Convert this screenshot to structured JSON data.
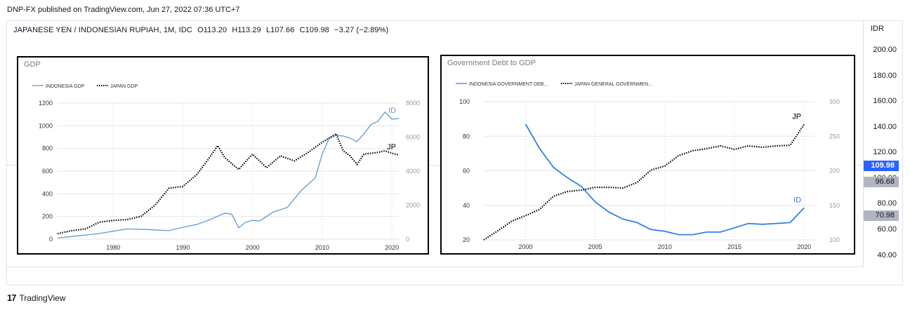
{
  "caption": "DNP-FX published on TradingView.com, Jun 27, 2022 07:36 UTC+7",
  "symbol": {
    "name": "JAPANESE YEN / INDONESIAN RUPIAH, 1M, IDC",
    "open": "O113.20",
    "high": "H113.29",
    "low": "L107.66",
    "close": "C109.98",
    "change": "−3.27 (−2.89%)"
  },
  "price_axis": {
    "unit": "IDR",
    "ticks": [
      "200.00",
      "180.00",
      "160.00",
      "140.00",
      "120.00",
      "100.00",
      "80.00",
      "60.00",
      "40.00"
    ],
    "last_price": "109.98",
    "marker_a": "96.68",
    "marker_b": "70.98",
    "colors": {
      "price": "#2962ff",
      "marker": "#b2b5be"
    }
  },
  "brand": {
    "logo": "17",
    "name": "TradingView"
  },
  "chart_data": [
    {
      "type": "line",
      "title": "GDP",
      "legend": [
        "INDONESIA GDP",
        "JAPAN GDP"
      ],
      "x_ticks": [
        "1980",
        "1990",
        "2000",
        "2010",
        "2020"
      ],
      "xlim": [
        1972,
        2021
      ],
      "left_axis": {
        "ticks": [
          "1200",
          "1000",
          "800",
          "600",
          "400",
          "200",
          "0"
        ],
        "ylim": [
          0,
          1200
        ]
      },
      "right_axis": {
        "ticks": [
          "8000",
          "6000",
          "4000",
          "2000",
          "0"
        ],
        "ylim": [
          0,
          8000
        ]
      },
      "series": [
        {
          "name": "INDONESIA GDP",
          "label": "ID",
          "axis": "left",
          "style": "solid",
          "color": "#5b9bd5",
          "x": [
            1972,
            1975,
            1978,
            1980,
            1982,
            1985,
            1988,
            1990,
            1992,
            1994,
            1996,
            1997,
            1998,
            1999,
            2000,
            2001,
            2003,
            2005,
            2007,
            2009,
            2010,
            2011,
            2012,
            2013,
            2014,
            2015,
            2016,
            2017,
            2018,
            2019,
            2020,
            2021
          ],
          "values": [
            10,
            30,
            50,
            70,
            90,
            85,
            75,
            105,
            130,
            175,
            230,
            220,
            100,
            150,
            165,
            160,
            240,
            280,
            430,
            540,
            750,
            890,
            915,
            910,
            890,
            860,
            930,
            1010,
            1040,
            1120,
            1058,
            1065
          ]
        },
        {
          "name": "JAPAN GDP",
          "label": "JP",
          "axis": "right",
          "style": "dotted",
          "color": "#000000",
          "x": [
            1972,
            1974,
            1976,
            1978,
            1980,
            1982,
            1984,
            1986,
            1988,
            1990,
            1992,
            1994,
            1995,
            1996,
            1998,
            2000,
            2002,
            2004,
            2006,
            2008,
            2010,
            2012,
            2013,
            2014,
            2015,
            2016,
            2018,
            2019,
            2020,
            2021
          ],
          "values": [
            320,
            500,
            600,
            1000,
            1100,
            1150,
            1350,
            2000,
            3000,
            3100,
            3800,
            4900,
            5500,
            4800,
            4100,
            5000,
            4200,
            4900,
            4600,
            5100,
            5700,
            6200,
            5200,
            4900,
            4400,
            5000,
            5100,
            5200,
            5050,
            4950
          ]
        }
      ]
    },
    {
      "type": "line",
      "title": "Government Debt to GDP",
      "legend": [
        "INDONESIA GOVERNMENT DEB...",
        "JAPAN GENERAL GOVERNMEN..."
      ],
      "x_ticks": [
        "2000",
        "2005",
        "2010",
        "2015",
        "2020"
      ],
      "xlim": [
        1997,
        2020.8
      ],
      "left_axis": {
        "ticks": [
          "100",
          "80",
          "60",
          "40",
          "20"
        ],
        "ylim": [
          20,
          100
        ]
      },
      "right_axis": {
        "ticks": [
          "300",
          "250",
          "200",
          "150",
          "100"
        ],
        "ylim": [
          100,
          300
        ]
      },
      "series": [
        {
          "name": "INDONESIA GOVERNMENT DEB...",
          "label": "ID",
          "axis": "left",
          "style": "solid",
          "color": "#2f80ed",
          "x": [
            2000,
            2001,
            2002,
            2003,
            2004,
            2005,
            2006,
            2007,
            2008,
            2009,
            2010,
            2011,
            2012,
            2013,
            2014,
            2015,
            2016,
            2017,
            2018,
            2019,
            2020
          ],
          "values": [
            87,
            73,
            62,
            56,
            51,
            42,
            36,
            32,
            30,
            26,
            25,
            23,
            23,
            24.5,
            24.5,
            27,
            29.5,
            29,
            29.5,
            30,
            38.5
          ]
        },
        {
          "name": "JAPAN GENERAL GOVERNMEN...",
          "label": "JP",
          "axis": "right",
          "style": "dotted",
          "color": "#000000",
          "x": [
            1997,
            1998,
            1999,
            2000,
            2001,
            2002,
            2003,
            2004,
            2005,
            2006,
            2007,
            2008,
            2009,
            2010,
            2011,
            2012,
            2013,
            2014,
            2015,
            2016,
            2017,
            2018,
            2019,
            2020
          ],
          "values": [
            100,
            113,
            127,
            135,
            144,
            163,
            170,
            172,
            176,
            176,
            175,
            183,
            201,
            207,
            222,
            229,
            232,
            236,
            231,
            236,
            234,
            236,
            237,
            267
          ]
        }
      ]
    }
  ]
}
